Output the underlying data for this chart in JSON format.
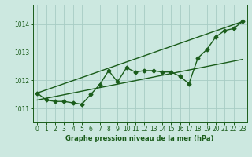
{
  "title": "Graphe pression niveau de la mer (hPa)",
  "bg_color": "#cce8e0",
  "grid_color": "#a8ccc4",
  "line_color": "#1a5c1a",
  "xlim": [
    -0.5,
    23.5
  ],
  "ylim": [
    1010.5,
    1014.7
  ],
  "xticks": [
    0,
    1,
    2,
    3,
    4,
    5,
    6,
    7,
    8,
    9,
    10,
    11,
    12,
    13,
    14,
    15,
    16,
    17,
    18,
    19,
    20,
    21,
    22,
    23
  ],
  "yticks": [
    1011,
    1012,
    1013,
    1014
  ],
  "data_x": [
    0,
    1,
    2,
    3,
    4,
    5,
    6,
    7,
    8,
    9,
    10,
    11,
    12,
    13,
    14,
    15,
    16,
    17,
    18,
    19,
    20,
    21,
    22,
    23
  ],
  "data_y": [
    1011.55,
    1011.3,
    1011.25,
    1011.25,
    1011.2,
    1011.15,
    1011.5,
    1011.85,
    1012.35,
    1011.95,
    1012.45,
    1012.3,
    1012.35,
    1012.35,
    1012.3,
    1012.3,
    1012.15,
    1011.88,
    1012.8,
    1013.1,
    1013.55,
    1013.78,
    1013.85,
    1014.1
  ],
  "trend1_x": [
    0,
    23
  ],
  "trend1_y": [
    1011.55,
    1014.1
  ],
  "trend2_x": [
    0,
    23
  ],
  "trend2_y": [
    1011.3,
    1012.75
  ],
  "marker_size": 2.5,
  "line_width": 1.0
}
